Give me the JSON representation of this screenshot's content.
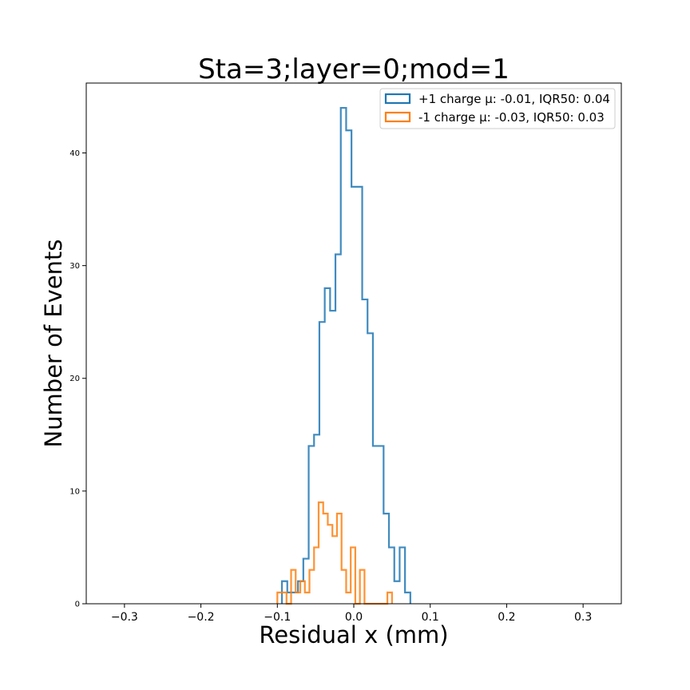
{
  "chart_data": {
    "type": "histogram",
    "title": "Sta=3;layer=0;mod=1",
    "xlabel": "Residual x (mm)",
    "ylabel": "Number of Events",
    "xlim": [
      -0.35,
      0.35
    ],
    "ylim": [
      0,
      46.2
    ],
    "xticks": [
      -0.3,
      -0.2,
      -0.1,
      0.0,
      0.1,
      0.2,
      0.3
    ],
    "xtick_labels": [
      "−0.3",
      "−0.2",
      "−0.1",
      "0.0",
      "0.1",
      "0.2",
      "0.3"
    ],
    "yticks": [
      0,
      10,
      20,
      30,
      40
    ],
    "ytick_labels": [
      "0",
      "10",
      "20",
      "30",
      "40"
    ],
    "grid": false,
    "legend_position": "top-right",
    "series": [
      {
        "name": "+1 charge μ: -0.01, IQR50: 0.04",
        "color": "#1f77b4",
        "bin_edges": [
          -0.094,
          -0.087,
          -0.08,
          -0.073,
          -0.066,
          -0.059,
          -0.052,
          -0.045,
          -0.038,
          -0.031,
          -0.024,
          -0.017,
          -0.01,
          -0.003,
          0.004,
          0.011,
          0.018,
          0.025,
          0.032,
          0.039,
          0.046,
          0.053,
          0.06,
          0.067,
          0.074
        ],
        "counts": [
          2,
          1,
          1,
          2,
          4,
          14,
          15,
          25,
          28,
          26,
          31,
          44,
          42,
          37,
          37,
          27,
          24,
          14,
          14,
          8,
          5,
          2,
          5,
          1
        ]
      },
      {
        "name": "-1 charge μ: -0.03, IQR50: 0.03",
        "color": "#ff7f0e",
        "bin_edges": [
          -0.1,
          -0.094,
          -0.088,
          -0.082,
          -0.076,
          -0.07,
          -0.064,
          -0.058,
          -0.052,
          -0.046,
          -0.04,
          -0.034,
          -0.028,
          -0.022,
          -0.016,
          -0.01,
          -0.004,
          0.002,
          0.008,
          0.014,
          0.02,
          0.026,
          0.032,
          0.038,
          0.044,
          0.05
        ],
        "counts": [
          1,
          1,
          0,
          3,
          1,
          2,
          1,
          3,
          5,
          9,
          8,
          7,
          6,
          8,
          3,
          1,
          5,
          0,
          3,
          0,
          0,
          0,
          0,
          0,
          1
        ]
      }
    ]
  }
}
